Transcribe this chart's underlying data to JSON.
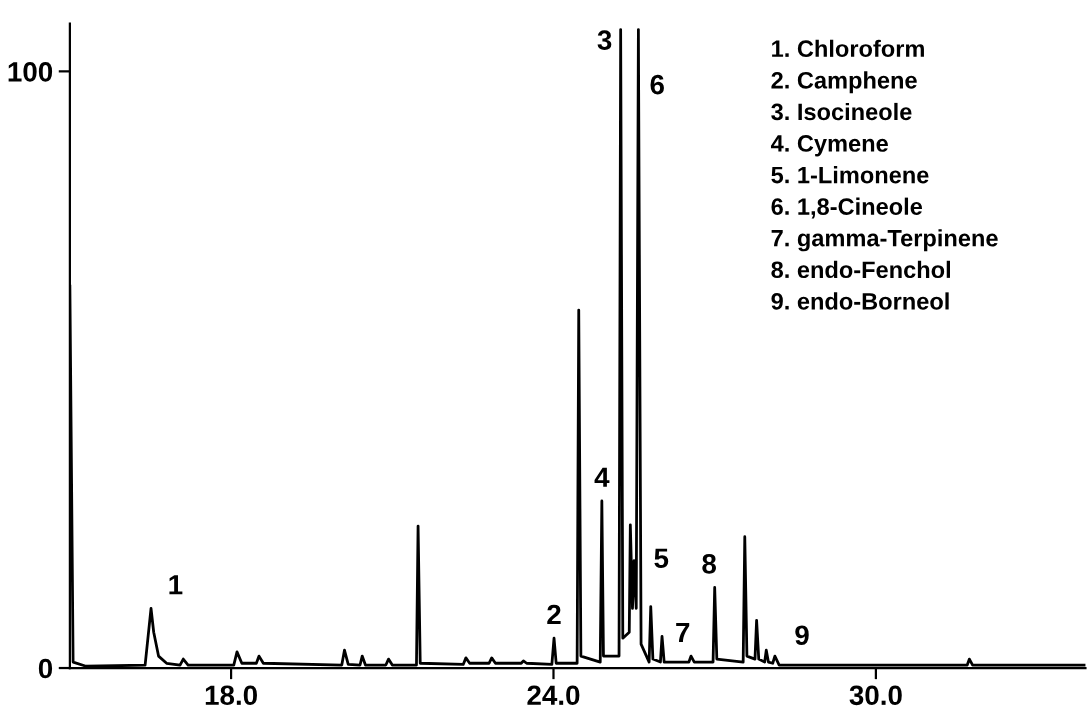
{
  "chart_data": {
    "type": "line",
    "x": [
      15.0,
      15.06,
      15.3,
      16.4,
      16.51,
      16.56,
      16.65,
      16.8,
      17.05,
      17.11,
      17.2,
      18.05,
      18.11,
      18.2,
      18.47,
      18.52,
      18.6,
      20.06,
      20.11,
      20.18,
      20.4,
      20.44,
      20.5,
      20.88,
      20.93,
      21.0,
      21.45,
      21.48,
      21.52,
      22.32,
      22.37,
      22.44,
      22.8,
      22.85,
      22.92,
      23.4,
      23.44,
      23.5,
      23.97,
      24.01,
      24.05,
      24.44,
      24.47,
      24.51,
      24.87,
      24.9,
      24.93,
      25.22,
      25.25,
      25.29,
      25.41,
      25.43,
      25.47,
      25.5,
      25.54,
      25.58,
      25.63,
      25.78,
      25.81,
      25.85,
      25.99,
      26.02,
      26.06,
      26.52,
      26.56,
      26.62,
      26.97,
      27.0,
      27.04,
      27.53,
      27.56,
      27.6,
      27.75,
      27.78,
      27.82,
      27.93,
      27.96,
      28.0,
      28.08,
      28.12,
      28.2,
      31.7,
      31.74,
      31.8,
      33.9
    ],
    "series": [
      {
        "color": "#000000",
        "values": [
          64,
          1,
          0.3,
          0.5,
          10,
          6,
          2,
          0.8,
          0.5,
          1.5,
          0.5,
          0.5,
          2.7,
          0.8,
          0.8,
          2,
          0.8,
          0.5,
          3,
          0.6,
          0.5,
          2,
          0.5,
          0.5,
          1.5,
          0.5,
          0.5,
          23.8,
          0.8,
          0.6,
          1.7,
          0.8,
          0.8,
          1.7,
          0.8,
          0.8,
          1.2,
          0.8,
          0.6,
          5,
          0.8,
          0.8,
          60,
          2,
          1,
          28,
          2,
          2,
          107,
          5,
          6,
          24,
          10,
          18,
          10,
          107,
          4,
          1,
          10.3,
          1.5,
          1,
          5.3,
          1,
          1,
          2,
          1,
          1,
          13.5,
          1.5,
          1,
          22,
          2,
          1.5,
          8,
          1.5,
          1,
          3,
          1,
          0.8,
          2,
          0.5,
          0.5,
          1.5,
          0.5,
          0.5
        ]
      }
    ],
    "xlim": [
      15.0,
      33.9
    ],
    "ylim": [
      0,
      108
    ],
    "xticks": [
      {
        "value": 18,
        "label": "18.0"
      },
      {
        "value": 24,
        "label": "24.0"
      },
      {
        "value": 30,
        "label": "30.0"
      }
    ],
    "yticks": [
      0,
      100
    ],
    "grid": false,
    "legend": false,
    "annotations": [
      {
        "text": "1",
        "x": 16.51,
        "y": 10
      },
      {
        "text": "2",
        "x": 24.01,
        "y": 5
      },
      {
        "text": "3",
        "x": 25.25,
        "y": 107
      },
      {
        "text": "4",
        "x": 24.9,
        "y": 28
      },
      {
        "text": "5",
        "x": 25.5,
        "y": 18
      },
      {
        "text": "6",
        "x": 25.58,
        "y": 107
      },
      {
        "text": "7",
        "x": 26.56,
        "y": 2
      },
      {
        "text": "8",
        "x": 27.0,
        "y": 13.5
      },
      {
        "text": "9",
        "x": 28.12,
        "y": 2
      },
      "1. Chloroform",
      "2. Camphene",
      "3. Isocineole",
      "4. Cymene",
      "5. 1-Limonene",
      "6. 1,8-Cineole",
      "7. gamma-Terpinene",
      "8. endo-Fenchol",
      "9. endo-Borneol"
    ]
  }
}
